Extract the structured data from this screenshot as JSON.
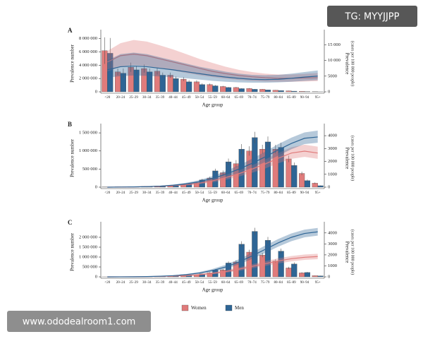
{
  "chart_data": [
    {
      "type": "bar",
      "title": "A",
      "x_label": "Age group",
      "y_label": "Prevalence number",
      "y2_label": "Prevalence",
      "y2_sublabel": "(cases per 100 000 people)",
      "categories": [
        "<20",
        "20–24",
        "25–29",
        "30–34",
        "35–39",
        "40–44",
        "45–49",
        "50–54",
        "55–59",
        "60–64",
        "65–69",
        "70–74",
        "75–79",
        "80–84",
        "85–89",
        "90–94",
        "95+"
      ],
      "ylim": [
        0,
        8500000
      ],
      "yticks": [
        0,
        {
          "value": 2000000,
          "label": "2 000 000"
        },
        {
          "value": 4000000,
          "label": "4 000 000"
        },
        {
          "value": 6000000,
          "label": "6 000 000"
        },
        {
          "value": 8000000,
          "label": "8 000 000"
        }
      ],
      "y2lim": [
        0,
        18000
      ],
      "y2ticks": [
        0,
        5000,
        {
          "value": 10000,
          "label": "10 000"
        },
        {
          "value": 15000,
          "label": "15 000"
        }
      ],
      "series": [
        {
          "name": "Women",
          "color": "#e07b7b",
          "values": [
            6200000,
            3000000,
            3700000,
            3500000,
            3100000,
            2500000,
            1900000,
            1500000,
            1100000,
            800000,
            650000,
            500000,
            380000,
            250000,
            150000,
            70000,
            20000
          ],
          "errors": [
            2000000,
            500000,
            700000,
            600000,
            500000,
            400000,
            300000,
            220000,
            150000,
            100000,
            80000,
            60000,
            40000,
            30000,
            20000,
            10000,
            5000
          ]
        },
        {
          "name": "Men",
          "color": "#2e6595",
          "values": [
            5800000,
            2800000,
            3300000,
            3000000,
            2500000,
            2000000,
            1500000,
            1100000,
            900000,
            650000,
            480000,
            380000,
            280000,
            180000,
            100000,
            40000,
            10000
          ],
          "errors": [
            2300000,
            700000,
            600000,
            500000,
            400000,
            300000,
            250000,
            180000,
            120000,
            80000,
            60000,
            40000,
            30000,
            20000,
            10000,
            8000,
            3000
          ]
        },
        {
          "type": "line",
          "axis": "y2",
          "color": "#e07b7b",
          "values": [
            9500,
            11500,
            12000,
            11500,
            10500,
            9500,
            8500,
            7500,
            6500,
            5800,
            5200,
            4800,
            4500,
            4300,
            4300,
            4400,
            4500
          ],
          "upper": [
            13000,
            15500,
            16500,
            16000,
            14800,
            13500,
            12000,
            10500,
            9200,
            8000,
            7000,
            6300,
            5800,
            5500,
            5500,
            5700,
            6000
          ],
          "lower": [
            6500,
            8000,
            8500,
            8200,
            7500,
            6800,
            6000,
            5300,
            4700,
            4200,
            3800,
            3500,
            3300,
            3200,
            3200,
            3300,
            3400
          ]
        },
        {
          "type": "line",
          "axis": "y2",
          "color": "#2e6595",
          "values": [
            7000,
            8000,
            8200,
            8000,
            7500,
            7000,
            6400,
            5800,
            5200,
            4700,
            4300,
            4000,
            3900,
            4000,
            4300,
            4700,
            5000
          ],
          "upper": [
            10000,
            12000,
            12500,
            12000,
            11000,
            10000,
            9000,
            8000,
            7200,
            6400,
            5800,
            5400,
            5300,
            5400,
            5800,
            6300,
            6800
          ],
          "lower": [
            4500,
            5000,
            5200,
            5100,
            4900,
            4600,
            4300,
            3900,
            3500,
            3200,
            3000,
            2900,
            2900,
            3000,
            3200,
            3500,
            3700
          ]
        }
      ]
    },
    {
      "type": "bar",
      "title": "B",
      "x_label": "Age group",
      "y_label": "Prevalence  number",
      "y2_label": "Prevalence",
      "y2_sublabel": "(cases per 100 000 people)",
      "categories": [
        "<20",
        "20–24",
        "25–29",
        "30–34",
        "35–39",
        "40–44",
        "45–49",
        "50–54",
        "55–59",
        "60–64",
        "65–69",
        "70–74",
        "75–79",
        "80–84",
        "85–89",
        "90–94",
        "95+"
      ],
      "ylim": [
        0,
        1600000
      ],
      "yticks": [
        0,
        {
          "value": 500000,
          "label": "500 000"
        },
        {
          "value": 1000000,
          "label": "1 000 000"
        },
        {
          "value": 1500000,
          "label": "1 500 000"
        }
      ],
      "y2lim": [
        0,
        4500
      ],
      "y2ticks": [
        0,
        1000,
        2000,
        3000,
        4000
      ],
      "series": [
        {
          "name": "Women",
          "color": "#e07b7b",
          "values": [
            5000,
            10000,
            15000,
            20000,
            30000,
            45000,
            70000,
            120000,
            250000,
            400000,
            650000,
            1000000,
            1050000,
            1050000,
            780000,
            380000,
            110000
          ],
          "errors": [
            2000,
            3000,
            4000,
            5000,
            6000,
            8000,
            12000,
            20000,
            40000,
            60000,
            100000,
            130000,
            120000,
            120000,
            90000,
            50000,
            20000
          ]
        },
        {
          "name": "Men",
          "color": "#2e6595",
          "values": [
            5000,
            8000,
            12000,
            18000,
            25000,
            55000,
            100000,
            200000,
            450000,
            700000,
            1050000,
            1370000,
            1250000,
            1100000,
            600000,
            180000,
            40000
          ],
          "errors": [
            2000,
            3000,
            4000,
            5000,
            7000,
            10000,
            18000,
            30000,
            60000,
            90000,
            140000,
            160000,
            150000,
            130000,
            80000,
            30000,
            10000
          ]
        },
        {
          "type": "line",
          "axis": "y2",
          "color": "#e07b7b",
          "values": [
            0,
            10,
            20,
            40,
            70,
            120,
            200,
            320,
            500,
            750,
            1050,
            1400,
            1800,
            2250,
            2650,
            2800,
            2650
          ],
          "upper": [
            0,
            20,
            30,
            60,
            100,
            170,
            280,
            430,
            650,
            950,
            1300,
            1700,
            2150,
            2650,
            3100,
            3300,
            3150
          ],
          "lower": [
            0,
            5,
            10,
            25,
            50,
            80,
            140,
            230,
            370,
            570,
            820,
            1120,
            1450,
            1850,
            2200,
            2350,
            2200
          ]
        },
        {
          "type": "line",
          "axis": "y2",
          "color": "#2e6595",
          "values": [
            0,
            10,
            20,
            40,
            80,
            150,
            260,
            430,
            680,
            1000,
            1400,
            1850,
            2350,
            2900,
            3400,
            3800,
            3900
          ],
          "upper": [
            0,
            20,
            35,
            60,
            110,
            200,
            340,
            550,
            860,
            1250,
            1700,
            2200,
            2750,
            3350,
            3850,
            4250,
            4400
          ],
          "lower": [
            0,
            5,
            10,
            25,
            55,
            110,
            190,
            320,
            520,
            780,
            1100,
            1500,
            1950,
            2450,
            2950,
            3350,
            3450
          ]
        }
      ]
    },
    {
      "type": "bar",
      "title": "C",
      "x_label": "Age group",
      "y_label": "Prevalence number",
      "y2_label": "Prevalence",
      "y2_sublabel": "(cases per 100 000 people)",
      "categories": [
        "<20",
        "20–24",
        "25–29",
        "30–34",
        "35–39",
        "40–44",
        "45–49",
        "50–54",
        "55–59",
        "60–64",
        "65–69",
        "70–74",
        "75–79",
        "80–84",
        "85–89",
        "90–94",
        "95+"
      ],
      "ylim": [
        0,
        2500000
      ],
      "yticks": [
        0,
        {
          "value": 500000,
          "label": "500 000"
        },
        {
          "value": 1000000,
          "label": "1 000 000"
        },
        {
          "value": 1500000,
          "label": "1 500 000"
        },
        {
          "value": 2000000,
          "label": "2 000 000"
        }
      ],
      "y2lim": [
        0,
        4500
      ],
      "y2ticks": [
        0,
        1000,
        2000,
        3000,
        4000
      ],
      "series": [
        {
          "name": "Women",
          "color": "#e07b7b",
          "values": [
            2000,
            4000,
            6000,
            10000,
            18000,
            30000,
            50000,
            100000,
            200000,
            350000,
            750000,
            1250000,
            1100000,
            800000,
            450000,
            200000,
            60000
          ],
          "errors": [
            1000,
            2000,
            2000,
            3000,
            4000,
            5000,
            8000,
            15000,
            30000,
            50000,
            90000,
            120000,
            110000,
            90000,
            60000,
            30000,
            10000
          ]
        },
        {
          "name": "Men",
          "color": "#2e6595",
          "values": [
            2000,
            4000,
            7000,
            12000,
            22000,
            40000,
            70000,
            150000,
            350000,
            700000,
            1650000,
            2300000,
            1850000,
            1300000,
            650000,
            220000,
            50000
          ],
          "errors": [
            1000,
            2000,
            2000,
            3000,
            5000,
            7000,
            10000,
            20000,
            40000,
            80000,
            150000,
            180000,
            170000,
            130000,
            80000,
            30000,
            8000
          ]
        },
        {
          "type": "line",
          "axis": "y2",
          "color": "#e07b7b",
          "values": [
            0,
            5,
            10,
            20,
            40,
            70,
            120,
            200,
            320,
            480,
            700,
            950,
            1200,
            1450,
            1650,
            1780,
            1850
          ],
          "upper": [
            0,
            10,
            20,
            30,
            55,
            95,
            160,
            260,
            410,
            600,
            860,
            1140,
            1420,
            1690,
            1900,
            2030,
            2100
          ],
          "lower": [
            0,
            2,
            5,
            12,
            28,
            50,
            90,
            150,
            240,
            370,
            550,
            770,
            990,
            1220,
            1410,
            1540,
            1610
          ]
        },
        {
          "type": "line",
          "axis": "y2",
          "color": "#2e6595",
          "values": [
            0,
            5,
            10,
            25,
            55,
            110,
            200,
            350,
            580,
            900,
            1350,
            1900,
            2500,
            3100,
            3600,
            3950,
            4100
          ],
          "upper": [
            0,
            10,
            20,
            35,
            75,
            145,
            260,
            440,
            720,
            1100,
            1600,
            2200,
            2850,
            3450,
            3950,
            4300,
            4450
          ],
          "lower": [
            0,
            2,
            5,
            15,
            38,
            80,
            150,
            270,
            460,
            730,
            1130,
            1620,
            2170,
            2750,
            3250,
            3600,
            3750
          ]
        }
      ]
    }
  ],
  "watermarks": [
    "TG: MYYJJPP",
    "www.ododealroom1.com"
  ]
}
